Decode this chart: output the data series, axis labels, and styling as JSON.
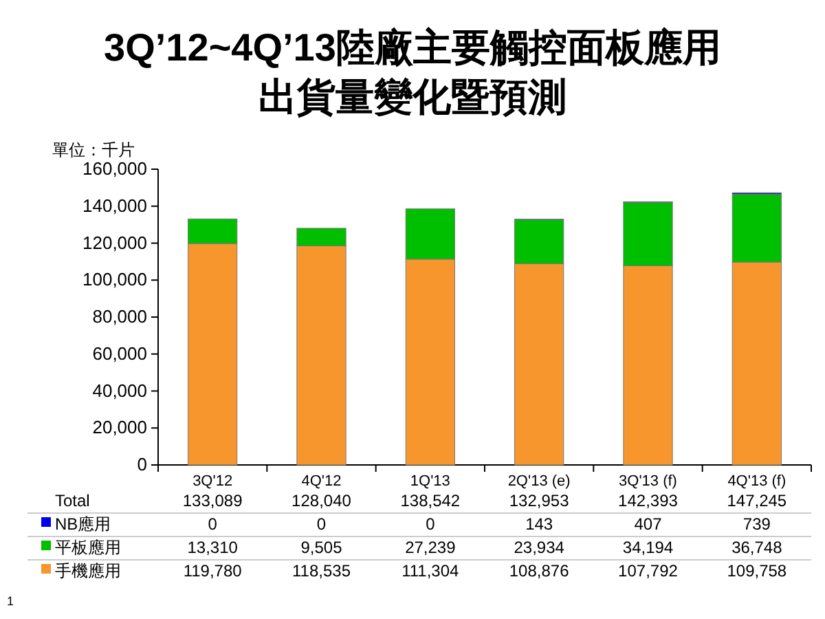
{
  "chart_data": {
    "type": "bar",
    "stacked": true,
    "title": "3Q’12~4Q’13陸廠主要觸控面板應用",
    "subtitle": "出貨量變化暨預測",
    "legend": "bottom left",
    "ylabel": "單位：千片",
    "categories": [
      "3Q'12",
      "4Q'12",
      "1Q'13",
      "2Q'13 (e)",
      "3Q'13 (f)",
      "4Q'13 (f)"
    ],
    "series": [
      {
        "name": "手機應用",
        "color": "#f7962d",
        "values": [
          119780,
          118535,
          111304,
          108876,
          107792,
          109758
        ],
        "value_labels": [
          "119,780",
          "118,535",
          "111,304",
          "108,876",
          "107,792",
          "109,758"
        ]
      },
      {
        "name": "平板應用",
        "color": "#00bf00",
        "values": [
          13310,
          9505,
          27239,
          23934,
          34194,
          36748
        ],
        "value_labels": [
          "13,310",
          "9,505",
          "27,239",
          "23,934",
          "34,194",
          "36,748"
        ]
      },
      {
        "name": "NB應用",
        "color": "#0000ee",
        "values": [
          0,
          0,
          0,
          143,
          407,
          739
        ],
        "value_labels": [
          "0",
          "0",
          "0",
          "143",
          "407",
          "739"
        ]
      }
    ],
    "ylim": [
      0,
      160000
    ],
    "yticks": [
      0,
      {
        "value": 20000,
        "label": "20,000"
      },
      {
        "value": 40000,
        "label": "40,000"
      },
      {
        "value": 60000,
        "label": "60,000"
      },
      {
        "value": 80000,
        "label": "80,000"
      },
      {
        "value": 100000,
        "label": "100,000"
      },
      {
        "value": 120000,
        "label": "120,000"
      },
      {
        "value": 140000,
        "label": "140,000"
      },
      {
        "value": 160000,
        "label": "160,000"
      }
    ],
    "totals": [
      "133,089",
      "128,040",
      "138,542",
      "132,953",
      "142,393",
      "147,245"
    ],
    "annotations": [
      "Total",
      "1"
    ]
  }
}
